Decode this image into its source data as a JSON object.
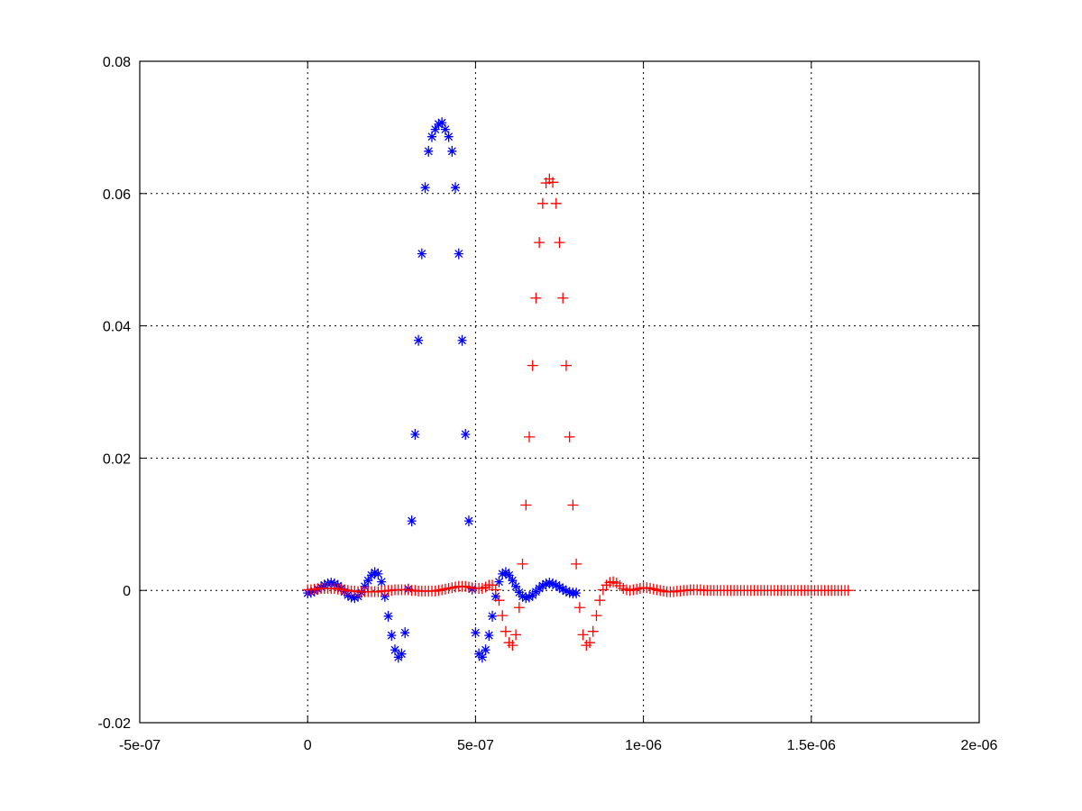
{
  "chart_data": {
    "type": "scatter",
    "title": "",
    "xlabel": "",
    "ylabel": "",
    "xlim": [
      -5e-07,
      2e-06
    ],
    "ylim": [
      -0.02,
      0.08
    ],
    "grid": true,
    "x_ticks": [
      {
        "value": -5e-07,
        "label": "-5e-07"
      },
      {
        "value": 0,
        "label": "0"
      },
      {
        "value": 5e-07,
        "label": "5e-07"
      },
      {
        "value": 1e-06,
        "label": "1e-06"
      },
      {
        "value": 1.5e-06,
        "label": "1.5e-06"
      },
      {
        "value": 2e-06,
        "label": "2e-06"
      }
    ],
    "y_ticks": [
      {
        "value": -0.02,
        "label": "-0.02"
      },
      {
        "value": 0,
        "label": "0"
      },
      {
        "value": 0.02,
        "label": "0.02"
      },
      {
        "value": 0.04,
        "label": "0.04"
      },
      {
        "value": 0.06,
        "label": "0.06"
      },
      {
        "value": 0.08,
        "label": "0.08"
      }
    ],
    "series": [
      {
        "marker": "asterisk",
        "color": "#0000ff",
        "x": [
          0,
          1e-08,
          2e-08,
          3e-08,
          4e-08,
          5e-08,
          6e-08,
          7e-08,
          8e-08,
          9e-08,
          1e-07,
          1.1e-07,
          1.2e-07,
          1.3e-07,
          1.4e-07,
          1.5e-07,
          1.6e-07,
          1.7e-07,
          1.8e-07,
          1.9e-07,
          2e-07,
          2.1e-07,
          2.2e-07,
          2.3e-07,
          2.4e-07,
          2.5e-07,
          2.6e-07,
          2.7e-07,
          2.8e-07,
          2.9e-07,
          3e-07,
          3.1e-07,
          3.2e-07,
          3.3e-07,
          3.4e-07,
          3.5e-07,
          3.6e-07,
          3.7e-07,
          3.8e-07,
          3.9e-07,
          4e-07,
          4.1e-07,
          4.2e-07,
          4.3e-07,
          4.4e-07,
          4.5e-07,
          4.6e-07,
          4.7e-07,
          4.8e-07,
          4.9e-07,
          5e-07,
          5.1e-07,
          5.2e-07,
          5.3e-07,
          5.4e-07,
          5.5e-07,
          5.6e-07,
          5.7e-07,
          5.8e-07,
          5.9e-07,
          6e-07,
          6.1e-07,
          6.2e-07,
          6.3e-07,
          6.4e-07,
          6.5e-07,
          6.6e-07,
          6.7e-07,
          6.8e-07,
          6.9e-07,
          7e-07,
          7.1e-07,
          7.2e-07,
          7.3e-07,
          7.4e-07,
          7.5e-07,
          7.6e-07,
          7.7e-07,
          7.8e-07,
          7.9e-07,
          8e-07
        ],
        "y": [
          -0.0004,
          -0.0003,
          -0.0001,
          0.0002,
          0.0005,
          0.0008,
          0.001,
          0.0011,
          0.001,
          0.0007,
          0.0003,
          -0.0002,
          -0.0007,
          -0.001,
          -0.0011,
          -0.0009,
          -0.0003,
          0.0006,
          0.0015,
          0.0023,
          0.0027,
          0.0025,
          0.0013,
          -0.0009,
          -0.0039,
          -0.0068,
          -0.009,
          -0.0101,
          -0.0096,
          -0.0064,
          0.0002,
          0.0105,
          0.0236,
          0.0378,
          0.0509,
          0.0609,
          0.0664,
          0.0686,
          0.0697,
          0.0705,
          0.0707,
          0.0697,
          0.0686,
          0.0664,
          0.0609,
          0.0509,
          0.0378,
          0.0236,
          0.0105,
          0.0002,
          -0.0064,
          -0.0096,
          -0.0101,
          -0.009,
          -0.0068,
          -0.0039,
          -0.0009,
          0.0013,
          0.0025,
          0.0027,
          0.0023,
          0.0015,
          0.0006,
          -0.0003,
          -0.0009,
          -0.0011,
          -0.001,
          -0.0007,
          -0.0002,
          0.0003,
          0.0007,
          0.001,
          0.0011,
          0.001,
          0.0008,
          0.0005,
          0.0002,
          -0.0001,
          -0.0003,
          -0.0004,
          -0.0004
        ]
      },
      {
        "marker": "plus",
        "color": "#ff0000",
        "x": [
          0,
          1e-08,
          2e-08,
          3e-08,
          4e-08,
          5e-08,
          6e-08,
          7e-08,
          8e-08,
          9e-08,
          1e-07,
          1.1e-07,
          1.2e-07,
          1.3e-07,
          1.4e-07,
          1.5e-07,
          1.6e-07,
          1.7e-07,
          1.8e-07,
          1.9e-07,
          2e-07,
          2.1e-07,
          2.2e-07,
          2.3e-07,
          2.4e-07,
          2.5e-07,
          2.6e-07,
          2.7e-07,
          2.8e-07,
          2.9e-07,
          3e-07,
          3.1e-07,
          3.2e-07,
          3.3e-07,
          3.4e-07,
          3.5e-07,
          3.6e-07,
          3.7e-07,
          3.8e-07,
          3.9e-07,
          4e-07,
          4.1e-07,
          4.2e-07,
          4.3e-07,
          4.4e-07,
          4.5e-07,
          4.6e-07,
          4.7e-07,
          4.8e-07,
          4.9e-07,
          5e-07,
          5.1e-07,
          5.2e-07,
          5.3e-07,
          5.4e-07,
          5.5e-07,
          5.6e-07,
          5.7e-07,
          5.8e-07,
          5.9e-07,
          6e-07,
          6.1e-07,
          6.2e-07,
          6.3e-07,
          6.4e-07,
          6.5e-07,
          6.6e-07,
          6.7e-07,
          6.8e-07,
          6.9e-07,
          7e-07,
          7.1e-07,
          7.2e-07,
          7.3e-07,
          7.4e-07,
          7.5e-07,
          7.6e-07,
          7.7e-07,
          7.8e-07,
          7.9e-07,
          8e-07,
          8.1e-07,
          8.2e-07,
          8.3e-07,
          8.4e-07,
          8.5e-07,
          8.6e-07,
          8.7e-07,
          8.8e-07,
          8.9e-07,
          9e-07,
          9.1e-07,
          9.2e-07,
          9.3e-07,
          9.4e-07,
          9.5e-07,
          9.6e-07,
          9.7e-07,
          9.8e-07,
          9.9e-07,
          1e-06,
          1.01e-06,
          1.02e-06,
          1.03e-06,
          1.04e-06,
          1.05e-06,
          1.06e-06,
          1.07e-06,
          1.08e-06,
          1.09e-06,
          1.1e-06,
          1.11e-06,
          1.12e-06,
          1.13e-06,
          1.14e-06,
          1.15e-06,
          1.16e-06,
          1.17e-06,
          1.18e-06,
          1.19e-06,
          1.2e-06,
          1.21e-06,
          1.22e-06,
          1.23e-06,
          1.24e-06,
          1.25e-06,
          1.26e-06,
          1.27e-06,
          1.28e-06,
          1.29e-06,
          1.3e-06,
          1.31e-06,
          1.32e-06,
          1.33e-06,
          1.34e-06,
          1.35e-06,
          1.36e-06,
          1.37e-06,
          1.38e-06,
          1.39e-06,
          1.4e-06,
          1.41e-06,
          1.42e-06,
          1.43e-06,
          1.44e-06,
          1.45e-06,
          1.46e-06,
          1.47e-06,
          1.48e-06,
          1.49e-06,
          1.5e-06,
          1.51e-06,
          1.52e-06,
          1.53e-06,
          1.54e-06,
          1.55e-06,
          1.56e-06,
          1.57e-06,
          1.58e-06,
          1.59e-06,
          1.6e-06,
          1.61e-06
        ],
        "y": [
          0.0001,
          0.0001,
          0.0002,
          0.0002,
          0.0003,
          0.0003,
          0.0003,
          0.0003,
          0.0003,
          0.0002,
          0.0002,
          0.0001,
          0.0,
          -0.0001,
          -0.0001,
          -0.0002,
          -0.0002,
          -0.0002,
          -0.0002,
          -0.0002,
          -0.0002,
          -0.0002,
          -0.0001,
          -0.0001,
          0.0,
          0.0,
          0.0001,
          0.0001,
          0.0001,
          0.0001,
          0.0001,
          0.0,
          0.0,
          -0.0001,
          -0.0001,
          -0.0001,
          -0.0001,
          -0.0001,
          -0.0001,
          0.0,
          0.0001,
          0.0002,
          0.0003,
          0.0004,
          0.0005,
          0.0006,
          0.0006,
          0.0006,
          0.0005,
          0.0004,
          0.0003,
          0.0003,
          0.0003,
          0.0005,
          0.0008,
          0.0008,
          0.0001,
          -0.0015,
          -0.0038,
          -0.0062,
          -0.0079,
          -0.0083,
          -0.0067,
          -0.0026,
          0.004,
          0.0129,
          0.0232,
          0.034,
          0.0442,
          0.0526,
          0.0585,
          0.0616,
          0.0622,
          0.0617,
          0.0585,
          0.0526,
          0.0442,
          0.034,
          0.0232,
          0.0129,
          0.004,
          -0.0026,
          -0.0067,
          -0.0083,
          -0.0079,
          -0.0062,
          -0.0038,
          -0.0015,
          0.0001,
          0.0008,
          0.0012,
          0.0013,
          0.0011,
          0.0007,
          0.0003,
          0.0001,
          0.0,
          0.0001,
          0.0002,
          0.0003,
          0.0004,
          0.0004,
          0.0003,
          0.0002,
          0.0001,
          0.0,
          -0.0001,
          -0.0002,
          -0.0002,
          -0.0002,
          -0.0001,
          -0.0001,
          0.0,
          0.0,
          0.0001,
          0.0001,
          0.0001,
          0.0001,
          0.0,
          0.0,
          0.0,
          0.0,
          0.0,
          0.0,
          0.0,
          0.0,
          0.0,
          0.0,
          0.0,
          0.0,
          0.0,
          0.0,
          0.0,
          0.0,
          0.0,
          0.0,
          0.0,
          0.0,
          0.0,
          0.0,
          0.0,
          0.0,
          0.0,
          0.0,
          0.0,
          0.0,
          0.0,
          0.0,
          0.0,
          0.0,
          0.0,
          0.0,
          0.0,
          0.0,
          0.0,
          0.0,
          0.0,
          0.0,
          0.0,
          0.0,
          0.0,
          0.0
        ]
      }
    ]
  }
}
